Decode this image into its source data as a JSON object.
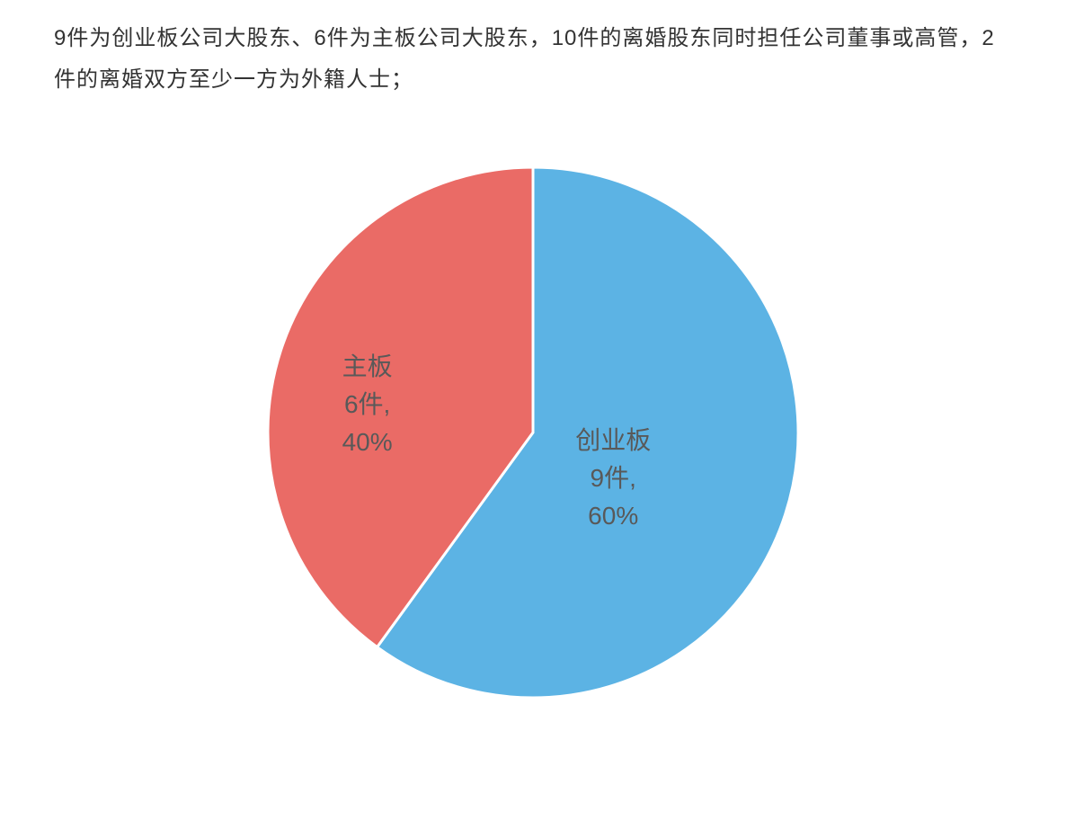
{
  "description": "9件为创业板公司大股东、6件为主板公司大股东，10件的离婚股东同时担任公司董事或高管，2件的离婚双方至少一方为外籍人士；",
  "pie_chart": {
    "type": "pie",
    "background_color": "#ffffff",
    "radius": 295,
    "start_angle_deg": 0,
    "stroke_color": "#ffffff",
    "stroke_width": 3,
    "label_color": "#595959",
    "label_fontsize": 28,
    "slices": [
      {
        "name": "创业板",
        "count_label": "9件,",
        "percent_label": "60%",
        "value": 9,
        "percent": 60,
        "color": "#5cb3e4"
      },
      {
        "name": "主板",
        "count_label": "6件,",
        "percent_label": "40%",
        "value": 6,
        "percent": 40,
        "color": "#ea6b66"
      }
    ]
  }
}
